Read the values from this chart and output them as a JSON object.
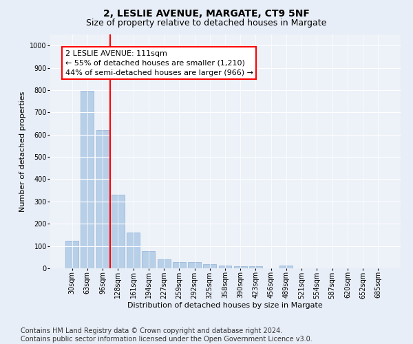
{
  "title": "2, LESLIE AVENUE, MARGATE, CT9 5NF",
  "subtitle": "Size of property relative to detached houses in Margate",
  "xlabel": "Distribution of detached houses by size in Margate",
  "ylabel": "Number of detached properties",
  "categories": [
    "30sqm",
    "63sqm",
    "96sqm",
    "128sqm",
    "161sqm",
    "194sqm",
    "227sqm",
    "259sqm",
    "292sqm",
    "325sqm",
    "358sqm",
    "390sqm",
    "423sqm",
    "456sqm",
    "489sqm",
    "521sqm",
    "554sqm",
    "587sqm",
    "620sqm",
    "652sqm",
    "685sqm"
  ],
  "values": [
    125,
    797,
    620,
    330,
    162,
    78,
    40,
    29,
    27,
    18,
    12,
    10,
    10,
    0,
    11,
    0,
    0,
    0,
    0,
    0,
    0
  ],
  "bar_color": "#b8cfe8",
  "bar_edge_color": "#8eb0d4",
  "vline_x": 2.5,
  "vline_color": "red",
  "annotation_text": "2 LESLIE AVENUE: 111sqm\n← 55% of detached houses are smaller (1,210)\n44% of semi-detached houses are larger (966) →",
  "annotation_box_color": "white",
  "annotation_box_edge": "red",
  "ylim": [
    0,
    1050
  ],
  "yticks": [
    0,
    100,
    200,
    300,
    400,
    500,
    600,
    700,
    800,
    900,
    1000
  ],
  "bg_color": "#e8eef7",
  "plot_bg_color": "#edf1f8",
  "footer": "Contains HM Land Registry data © Crown copyright and database right 2024.\nContains public sector information licensed under the Open Government Licence v3.0.",
  "title_fontsize": 10,
  "subtitle_fontsize": 9,
  "axis_label_fontsize": 8,
  "tick_fontsize": 7,
  "footer_fontsize": 7,
  "annotation_fontsize": 8
}
